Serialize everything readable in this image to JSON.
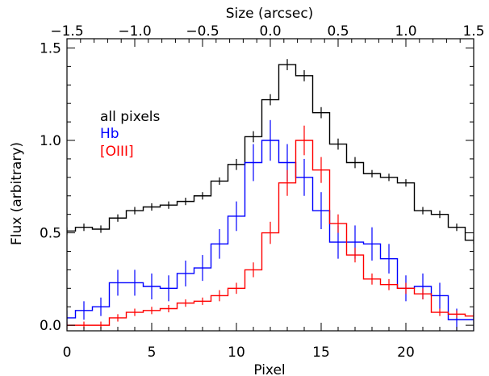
{
  "chart_data": {
    "type": "line",
    "drawstyle": "steps-mid",
    "xlabel": "Pixel",
    "ylabel": "Flux (arbitrary)",
    "x2label": "Size (arcsec)",
    "xlim": [
      0,
      24
    ],
    "ylim": [
      -0.03,
      1.55
    ],
    "x2lim": [
      -1.5,
      1.5
    ],
    "xticks": [
      0,
      5,
      10,
      15,
      20
    ],
    "yticks": [
      0.0,
      0.5,
      1.0,
      1.5
    ],
    "x2ticks": [
      -1.5,
      -1.0,
      -0.5,
      0.0,
      0.5,
      1.0,
      1.5
    ],
    "xtick_labels": [
      "0",
      "5",
      "10",
      "15",
      "20"
    ],
    "ytick_labels": [
      "0.0",
      "0.5",
      "1.0",
      "1.5"
    ],
    "x2tick_labels": [
      "−1.5",
      "−1.0",
      "−0.5",
      "0.0",
      "0.5",
      "1.0",
      "1.5"
    ],
    "legend_position": "left",
    "legend": [
      {
        "label": "all pixels",
        "color": "#000000"
      },
      {
        "label": "Hb",
        "color": "#0000ff"
      },
      {
        "label": "[OIII]",
        "color": "#ff0000"
      }
    ],
    "x": [
      0,
      1,
      2,
      3,
      4,
      5,
      6,
      7,
      8,
      9,
      10,
      11,
      12,
      13,
      14,
      15,
      16,
      17,
      18,
      19,
      20,
      21,
      22,
      23,
      24
    ],
    "series": [
      {
        "name": "all pixels",
        "color": "#000000",
        "values": [
          0.51,
          0.53,
          0.52,
          0.58,
          0.62,
          0.64,
          0.65,
          0.67,
          0.7,
          0.78,
          0.87,
          1.02,
          1.22,
          1.41,
          1.35,
          1.15,
          0.98,
          0.88,
          0.82,
          0.8,
          0.77,
          0.62,
          0.6,
          0.53,
          0.46
        ],
        "errors": [
          0.02,
          0.02,
          0.02,
          0.02,
          0.02,
          0.02,
          0.02,
          0.02,
          0.02,
          0.02,
          0.03,
          0.03,
          0.03,
          0.03,
          0.03,
          0.03,
          0.03,
          0.03,
          0.02,
          0.02,
          0.02,
          0.02,
          0.02,
          0.02,
          0.02
        ]
      },
      {
        "name": "Hb",
        "color": "#0000ff",
        "values": [
          0.04,
          0.08,
          0.1,
          0.23,
          0.23,
          0.21,
          0.2,
          0.28,
          0.31,
          0.44,
          0.59,
          0.88,
          1.0,
          0.88,
          0.8,
          0.62,
          0.45,
          0.45,
          0.44,
          0.36,
          0.2,
          0.21,
          0.16,
          0.03,
          0.03
        ],
        "errors": [
          0.04,
          0.05,
          0.05,
          0.07,
          0.07,
          0.07,
          0.07,
          0.07,
          0.07,
          0.08,
          0.08,
          0.1,
          0.11,
          0.1,
          0.1,
          0.1,
          0.09,
          0.09,
          0.09,
          0.08,
          0.07,
          0.07,
          0.07,
          0.06,
          0.06
        ]
      },
      {
        "name": "[OIII]",
        "color": "#ff0000",
        "values": [
          0.0,
          0.0,
          0.0,
          0.04,
          0.07,
          0.08,
          0.09,
          0.12,
          0.13,
          0.16,
          0.2,
          0.3,
          0.5,
          0.77,
          1.0,
          0.84,
          0.55,
          0.38,
          0.25,
          0.22,
          0.2,
          0.17,
          0.07,
          0.06,
          0.05
        ],
        "errors": [
          0.02,
          0.02,
          0.02,
          0.02,
          0.02,
          0.02,
          0.02,
          0.02,
          0.02,
          0.03,
          0.03,
          0.04,
          0.06,
          0.07,
          0.08,
          0.07,
          0.05,
          0.04,
          0.03,
          0.03,
          0.03,
          0.03,
          0.02,
          0.02,
          0.02
        ]
      }
    ]
  }
}
